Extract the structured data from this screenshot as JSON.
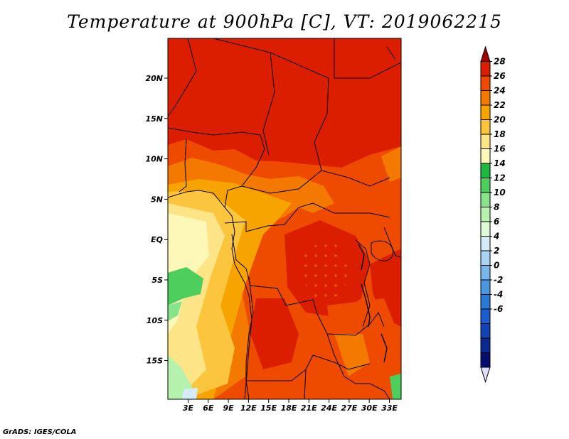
{
  "title": "Temperature at 900hPa [C], VT: 2019062215",
  "footer": "GrADS: IGES/COLA",
  "map": {
    "lat_labels": [
      "20N",
      "15N",
      "10N",
      "5N",
      "EQ",
      "5S",
      "10S",
      "15S"
    ],
    "lon_labels": [
      "3E",
      "6E",
      "9E",
      "12E",
      "15E",
      "18E",
      "21E",
      "24E",
      "27E",
      "30E",
      "33E"
    ]
  },
  "colorbar": {
    "labels": [
      "28",
      "26",
      "24",
      "22",
      "20",
      "18",
      "16",
      "14",
      "12",
      "10",
      "8",
      "6",
      "4",
      "2",
      "0",
      "-2",
      "-4",
      "-6"
    ],
    "colors": [
      "#a00000",
      "#dc1e00",
      "#ef4b00",
      "#f37900",
      "#f8a400",
      "#fbc53d",
      "#fde486",
      "#fdf8b8",
      "#1fb83f",
      "#4ecf5d",
      "#87e48b",
      "#b5f2ae",
      "#dcfad8",
      "#d4ecf9",
      "#a8d4f2",
      "#77b7eb",
      "#4a97e0",
      "#2c78d6",
      "#1c5ccf",
      "#1243b5",
      "#0a2a92",
      "#060d70",
      "#dcdcf8"
    ]
  }
}
